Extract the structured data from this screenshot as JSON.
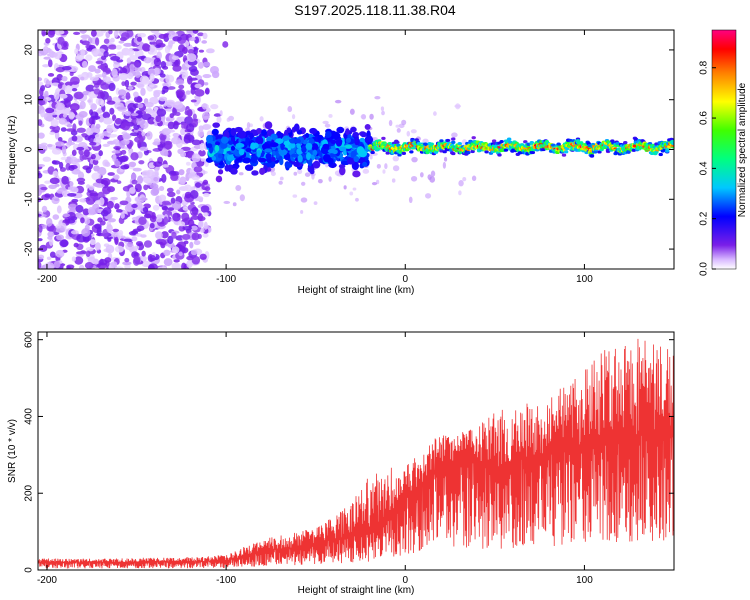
{
  "title": "S197.2025.118.11.38.R04",
  "colors": {
    "snr_line": "#ee3333",
    "spectrogram_noise": "#7a1fe8",
    "colormap": [
      "#ffffff",
      "#e8d8ff",
      "#7a1fe8",
      "#0000ff",
      "#00e0ff",
      "#00ff40",
      "#ffff00",
      "#ff8000",
      "#ff0000",
      "#ff00a0"
    ]
  },
  "chart_data": [
    {
      "type": "heatmap",
      "title": "",
      "xlabel": "Height of straight line (km)",
      "ylabel": "Frequency (Hz)",
      "xlim": [
        -205,
        150
      ],
      "ylim": [
        -24,
        24
      ],
      "x_ticks": [
        -200,
        -100,
        0,
        100
      ],
      "y_ticks": [
        -20,
        -10,
        0,
        10,
        20
      ],
      "colorbar": {
        "label": "Normalized spectral amplitude",
        "range": [
          0,
          0.95
        ],
        "ticks": [
          0.0,
          0.2,
          0.4,
          0.6,
          0.8
        ]
      },
      "regions": [
        {
          "x_range": [
            -205,
            -110
          ],
          "description": "broadband noise",
          "freq_range": [
            -24,
            24
          ],
          "amplitude": 0.1
        },
        {
          "x_range": [
            -110,
            -20
          ],
          "description": "broadened signal",
          "freq_range": [
            -8,
            8
          ],
          "amplitude": 0.25
        },
        {
          "x_range": [
            -20,
            150
          ],
          "description": "narrow carrier line",
          "freq_center": 0.5,
          "freq_halfwidth": 1.5,
          "amplitude": 0.7
        }
      ]
    },
    {
      "type": "line",
      "title": "",
      "xlabel": "Height of straight line (km)",
      "ylabel": "SNR (10 * v/v)",
      "xlim": [
        -205,
        150
      ],
      "ylim": [
        0,
        620
      ],
      "x_ticks": [
        -200,
        -100,
        0,
        100
      ],
      "y_ticks": [
        0,
        200,
        400,
        600
      ],
      "series": [
        {
          "x": [
            -205,
            -190,
            -175,
            -160,
            -145,
            -130,
            -115,
            -100,
            -90,
            -80,
            -70,
            -60,
            -50,
            -40,
            -30,
            -20,
            -10,
            0,
            10,
            20,
            30,
            40,
            50,
            60,
            70,
            80,
            90,
            100,
            110,
            120,
            130,
            140,
            150
          ],
          "values": [
            20,
            20,
            20,
            20,
            22,
            22,
            22,
            25,
            35,
            50,
            55,
            60,
            70,
            80,
            90,
            110,
            140,
            190,
            230,
            270,
            290,
            280,
            260,
            280,
            300,
            300,
            320,
            320,
            340,
            360,
            350,
            360,
            370
          ],
          "upper_envelope": [
            30,
            30,
            30,
            30,
            32,
            32,
            35,
            40,
            60,
            80,
            90,
            100,
            120,
            140,
            180,
            250,
            270,
            290,
            300,
            370,
            360,
            380,
            420,
            430,
            440,
            460,
            480,
            520,
            580,
            600,
            620,
            600,
            580
          ]
        }
      ]
    }
  ]
}
